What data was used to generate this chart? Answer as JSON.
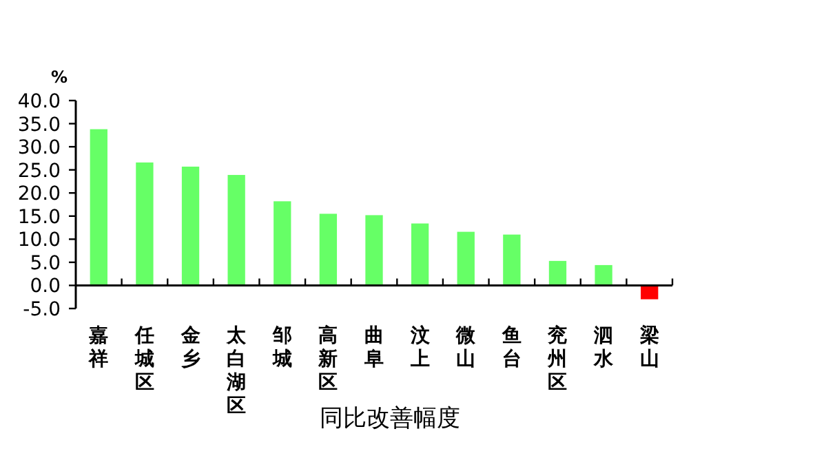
{
  "chart_data": {
    "type": "bar",
    "ylabel": "%",
    "xlabel": "同比改善幅度",
    "categories": [
      "嘉祥",
      "任城区",
      "金乡",
      "太白湖区",
      "邹城",
      "高新区",
      "曲阜",
      "汶上",
      "微山",
      "鱼台",
      "兖州区",
      "泗水",
      "梁山"
    ],
    "values": [
      33.8,
      26.6,
      25.7,
      23.9,
      18.2,
      15.5,
      15.2,
      13.4,
      11.6,
      11.0,
      5.3,
      4.4,
      -3.0
    ],
    "colors": [
      "#66ff66",
      "#66ff66",
      "#66ff66",
      "#66ff66",
      "#66ff66",
      "#66ff66",
      "#66ff66",
      "#66ff66",
      "#66ff66",
      "#66ff66",
      "#66ff66",
      "#66ff66",
      "#ff0000"
    ],
    "ylim": [
      -5,
      40
    ],
    "yticks": [
      {
        "value": -5,
        "label": "-5.0"
      },
      {
        "value": 0,
        "label": "0.0"
      },
      {
        "value": 5,
        "label": "5.0"
      },
      {
        "value": 10,
        "label": "10.0"
      },
      {
        "value": 15,
        "label": "15.0"
      },
      {
        "value": 20,
        "label": "20.0"
      },
      {
        "value": 25,
        "label": "25.0"
      },
      {
        "value": 30,
        "label": "30.0"
      },
      {
        "value": 35,
        "label": "35.0"
      },
      {
        "value": 40,
        "label": "40.0"
      }
    ],
    "grid": false
  }
}
